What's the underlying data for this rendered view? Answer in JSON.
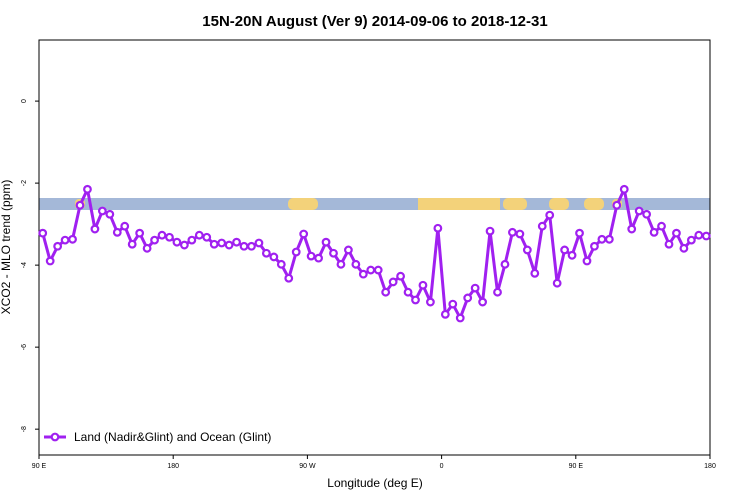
{
  "chart_data": {
    "type": "line",
    "title": "15N-20N August (Ver 9)   2014-09-06 to 2018-12-31",
    "x_label": "Longitude (deg E)",
    "y_label": "XCO2 - MLO trend (ppm)",
    "xlim": [
      90,
      540
    ],
    "xticks": [
      {
        "value": 90,
        "label": "90 E"
      },
      180,
      {
        "value": 270,
        "label": "90 W"
      },
      {
        "value": 360,
        "label": "0"
      },
      {
        "value": 450,
        "label": "90 E"
      },
      {
        "value": 540,
        "label": "180"
      }
    ],
    "ylim": [
      -8.63,
      1.49
    ],
    "yticks": [
      0,
      -2,
      -4,
      -6,
      -8
    ],
    "legend": "bottom-left",
    "x": [
      92.5,
      97.5,
      102.5,
      107.5,
      112.5,
      117.5,
      122.5,
      127.5,
      132.5,
      137.5,
      142.5,
      147.5,
      152.5,
      157.5,
      162.5,
      167.5,
      172.5,
      177.5,
      182.5,
      187.5,
      192.5,
      197.5,
      202.5,
      207.5,
      212.5,
      217.5,
      222.5,
      227.5,
      232.5,
      237.5,
      242.5,
      247.5,
      252.5,
      257.5,
      262.5,
      267.5,
      272.5,
      277.5,
      282.5,
      287.5,
      292.5,
      297.5,
      302.5,
      307.5,
      312.5,
      317.5,
      322.5,
      327.5,
      332.5,
      337.5,
      342.5,
      347.5,
      352.5,
      357.5,
      362.5,
      367.5,
      372.5,
      377.5,
      382.5,
      387.5,
      392.5,
      397.5,
      402.5,
      407.5,
      412.5,
      417.5,
      422.5,
      427.5,
      432.5,
      437.5,
      442.5,
      447.5,
      452.5,
      457.5,
      462.5,
      467.5,
      472.5,
      477.5,
      482.5,
      487.5,
      492.5,
      497.5,
      502.5,
      507.5,
      512.5,
      517.5,
      522.5,
      527.5,
      532.5,
      537.5
    ],
    "series": [
      {
        "name": "Land (Nadir&Glint) and Ocean (Glint)",
        "color": "#a020f0",
        "values": [
          -3.22,
          -3.9,
          -3.54,
          -3.39,
          -3.37,
          -2.54,
          -2.15,
          -3.12,
          -2.68,
          -2.76,
          -3.2,
          -3.05,
          -3.49,
          -3.22,
          -3.59,
          -3.39,
          -3.27,
          -3.32,
          -3.44,
          -3.51,
          -3.39,
          -3.27,
          -3.32,
          -3.49,
          -3.46,
          -3.51,
          -3.44,
          -3.54,
          -3.54,
          -3.46,
          -3.71,
          -3.8,
          -3.98,
          -4.32,
          -3.68,
          -3.24,
          -3.78,
          -3.83,
          -3.44,
          -3.71,
          -3.98,
          -3.63,
          -3.98,
          -4.22,
          -4.12,
          -4.12,
          -4.66,
          -4.41,
          -4.27,
          -4.66,
          -4.85,
          -4.49,
          -4.9,
          -3.1,
          -5.2,
          -4.95,
          -5.29,
          -4.8,
          -4.56,
          -4.9,
          -3.17,
          -4.66,
          -3.98,
          -3.2,
          -3.24,
          -3.63,
          -4.2,
          -3.05,
          -2.78,
          -4.44,
          -3.63,
          -3.76,
          -3.22,
          -3.9,
          -3.54,
          -3.37,
          -3.37,
          -2.54,
          -2.15,
          -3.12,
          -2.68,
          -2.76,
          -3.2,
          -3.05,
          -3.49,
          -3.22,
          -3.59,
          -3.39,
          -3.27,
          -3.29
        ]
      }
    ]
  }
}
